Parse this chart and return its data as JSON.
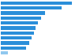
{
  "values": [
    870000,
    750000,
    540000,
    490000,
    460000,
    430000,
    410000,
    380000,
    350000,
    310000,
    85000
  ],
  "bar_color": "#2b8fd9",
  "last_bar_color": "#90c8ef",
  "background_color": "#ffffff",
  "grid_color": "#d9d9d9",
  "xlim": [
    0,
    950000
  ]
}
